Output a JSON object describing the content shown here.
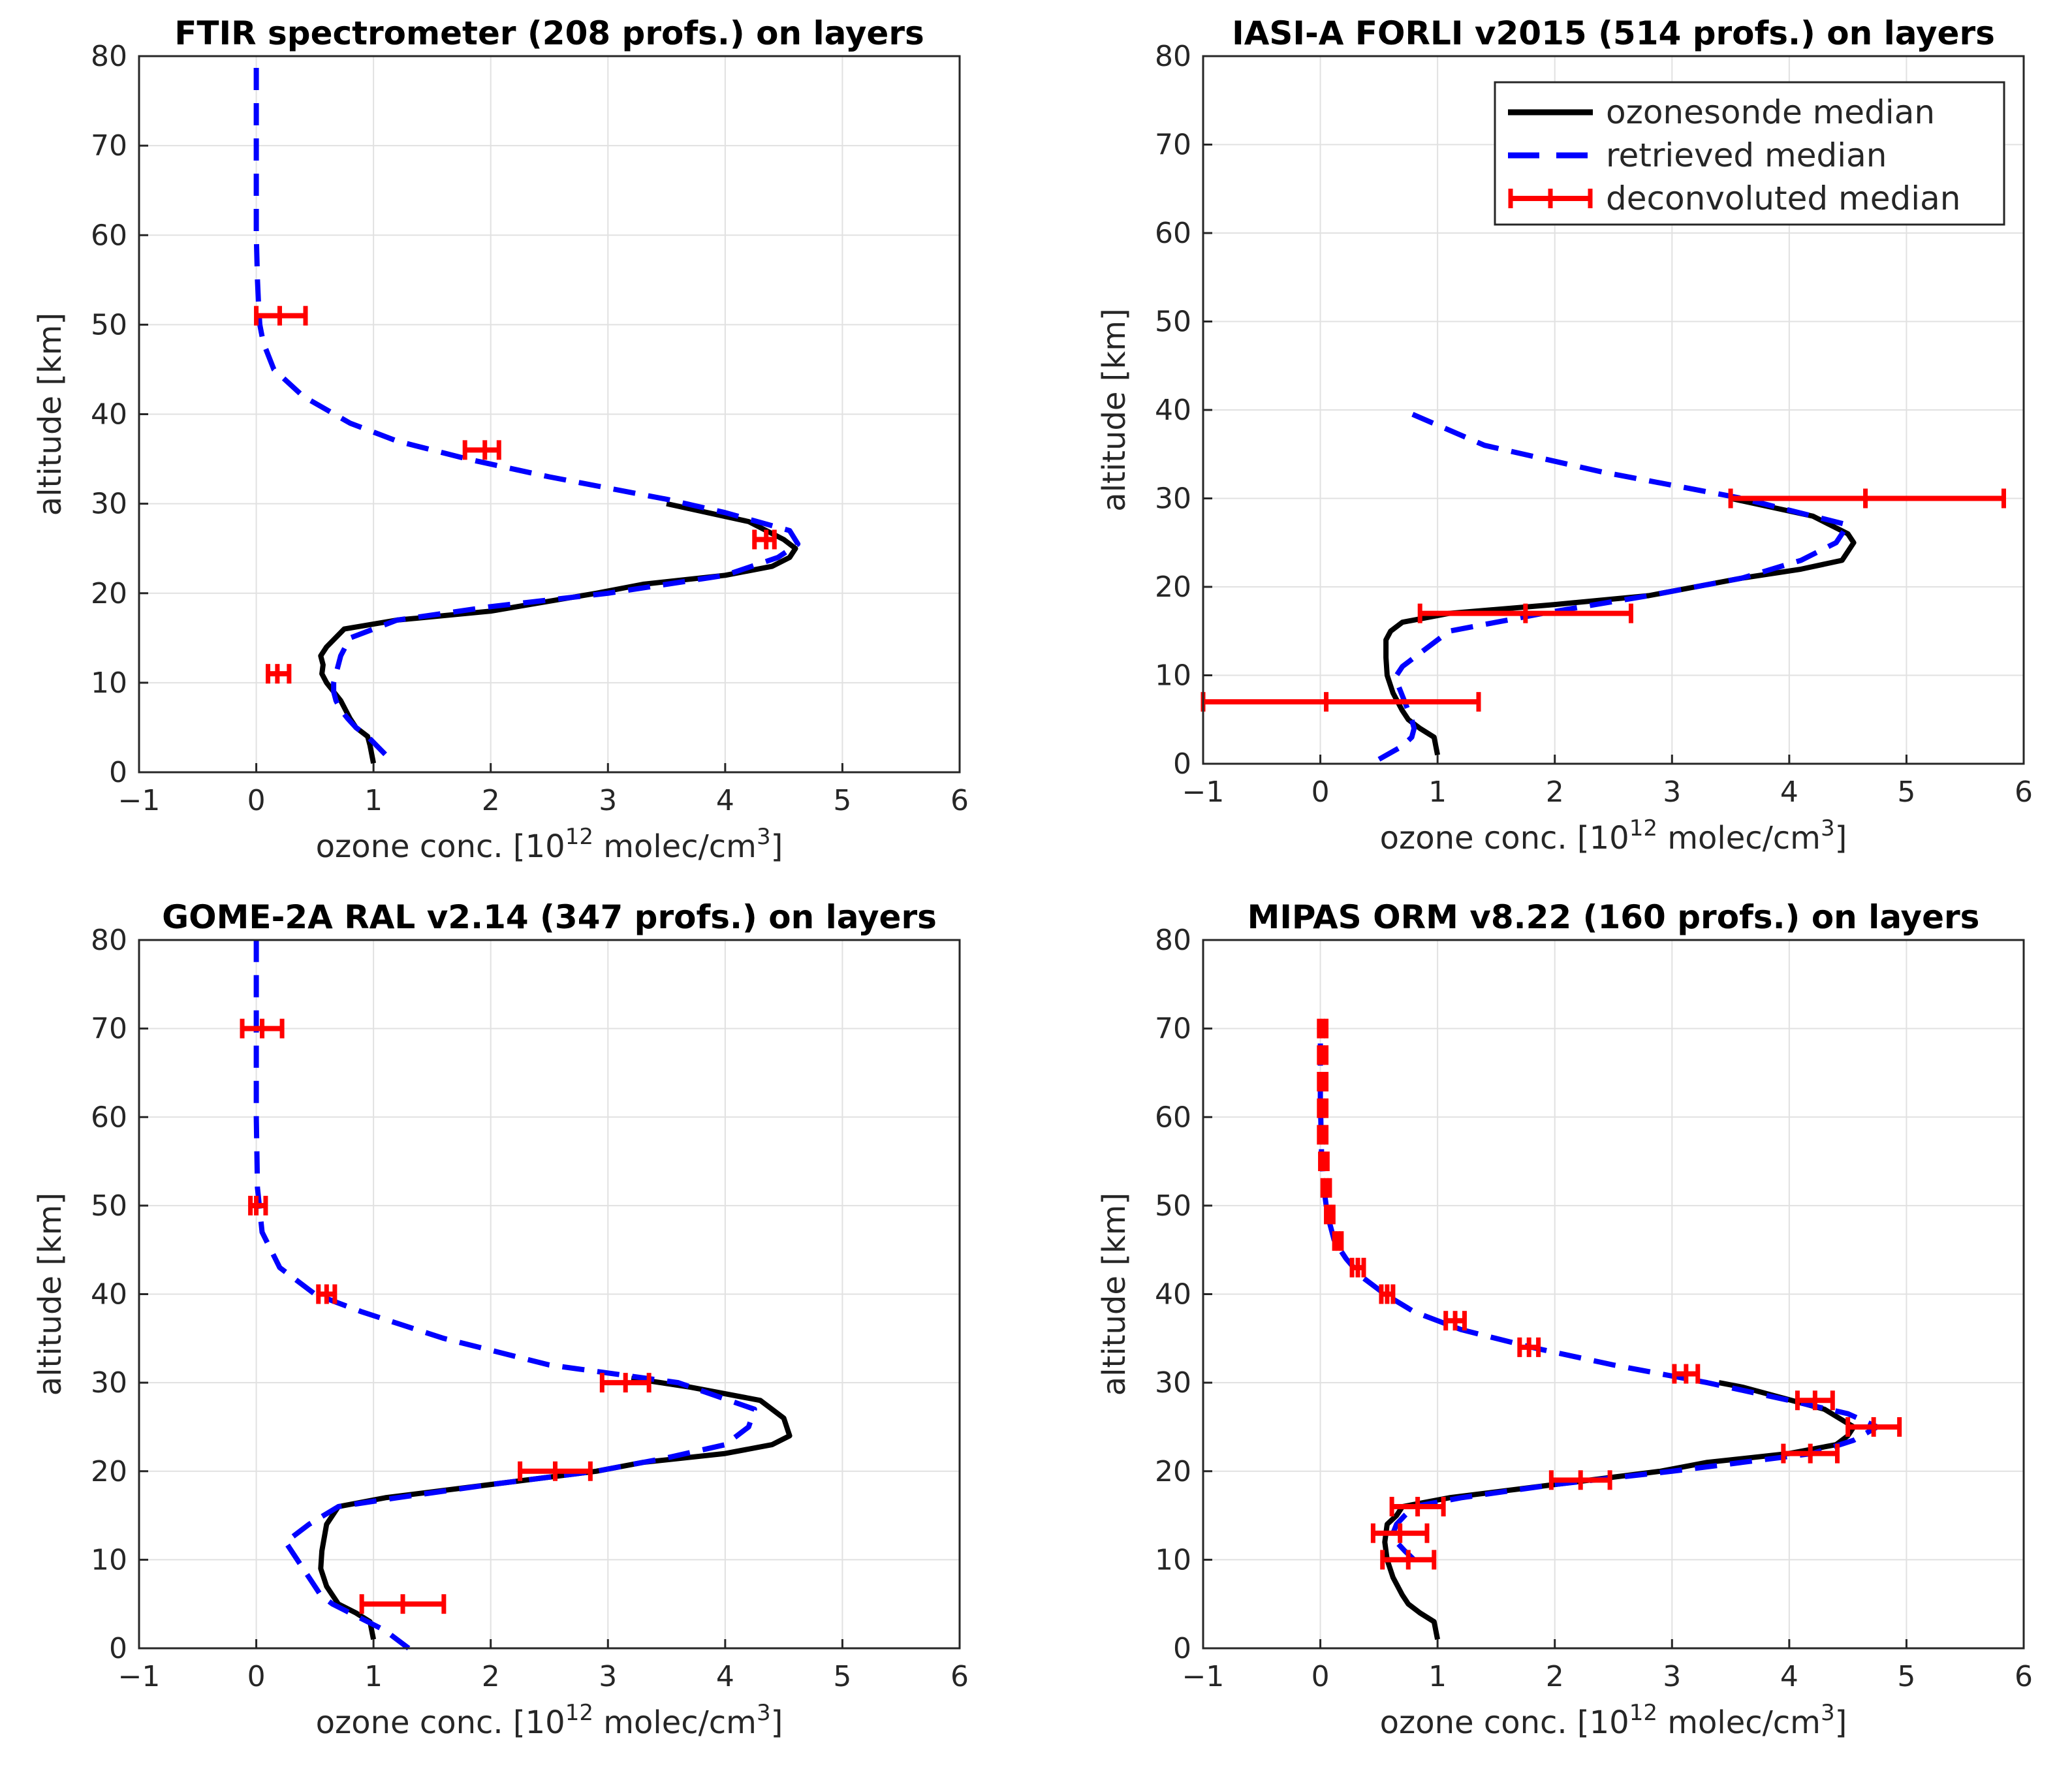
{
  "figure": {
    "xlabel_main": "ozone conc. [10",
    "xlabel_exp1": "12",
    "xlabel_mid": " molec/cm",
    "xlabel_exp2": "3",
    "xlabel_end": "]",
    "ylabel": "altitude [km]"
  },
  "legend": {
    "items": [
      {
        "label": "ozonesonde median",
        "color": "#000000",
        "style": "solid"
      },
      {
        "label": "retrieved median",
        "color": "#0000ff",
        "style": "dashed"
      },
      {
        "label": "deconvoluted median",
        "color": "#ff0000",
        "style": "errorbar"
      }
    ]
  },
  "colors": {
    "sonde": "#000000",
    "retrieved": "#0000ff",
    "deconvoluted": "#ff0000"
  },
  "chart_data": [
    {
      "type": "line",
      "title": "FTIR spectrometer (208 profs.) on layers",
      "xlim": [
        -1,
        6
      ],
      "ylim": [
        0,
        80
      ],
      "xticks": [
        -1,
        0,
        1,
        2,
        3,
        4,
        5,
        6
      ],
      "yticks": [
        0,
        10,
        20,
        30,
        40,
        50,
        60,
        70,
        80
      ],
      "grid": true,
      "legend": false,
      "series": [
        {
          "name": "ozonesonde median",
          "x": [
            1.0,
            0.97,
            0.95,
            0.85,
            0.8,
            0.72,
            0.6,
            0.56,
            0.57,
            0.55,
            0.6,
            0.75,
            1.2,
            2.0,
            2.9,
            3.3,
            4.0,
            4.4,
            4.55,
            4.6,
            4.5,
            4.2,
            3.5
          ],
          "y": [
            1,
            3,
            4,
            5,
            6,
            8,
            10,
            11,
            12,
            13,
            14,
            16,
            17,
            18,
            20,
            21,
            22,
            23,
            24,
            25,
            26,
            28,
            30
          ]
        },
        {
          "name": "retrieved median",
          "x": [
            1.1,
            0.95,
            0.85,
            0.78,
            0.72,
            0.68,
            0.66,
            0.66,
            0.68,
            0.7,
            0.72,
            0.8,
            1.2,
            2.0,
            3.0,
            4.0,
            4.45,
            4.62,
            4.55,
            4.0,
            3.5,
            2.5,
            1.8,
            1.2,
            0.8,
            0.4,
            0.15,
            0.06,
            0.03,
            0.02,
            0.01,
            0.0,
            0.0,
            0.0
          ],
          "y": [
            2,
            4,
            5,
            6,
            7,
            8,
            9,
            10,
            11,
            12,
            13,
            15,
            17,
            18.5,
            20,
            22,
            24,
            25.5,
            27,
            29,
            30.5,
            33,
            35,
            37,
            39,
            42,
            45,
            48,
            50,
            52,
            55,
            60,
            70,
            80
          ]
        }
      ],
      "errorbars": [
        {
          "y": 51,
          "x": 0.2,
          "xerr_low": 0.2,
          "xerr_high": 0.22
        },
        {
          "y": 36,
          "x": 1.95,
          "xerr_low": 0.17,
          "xerr_high": 0.12
        },
        {
          "y": 26,
          "x": 4.35,
          "xerr_low": 0.1,
          "xerr_high": 0.07
        },
        {
          "y": 11,
          "x": 0.18,
          "xerr_low": 0.08,
          "xerr_high": 0.1
        }
      ]
    },
    {
      "type": "line",
      "title": "IASI-A FORLI v2015 (514 profs.) on layers",
      "xlim": [
        -1,
        6
      ],
      "ylim": [
        0,
        80
      ],
      "xticks": [
        -1,
        0,
        1,
        2,
        3,
        4,
        5,
        6
      ],
      "yticks": [
        0,
        10,
        20,
        30,
        40,
        50,
        60,
        70,
        80
      ],
      "grid": true,
      "legend": true,
      "series": [
        {
          "name": "ozonesonde median",
          "x": [
            1.0,
            0.97,
            0.85,
            0.75,
            0.7,
            0.62,
            0.57,
            0.56,
            0.56,
            0.6,
            0.7,
            1.1,
            2.0,
            2.8,
            3.2,
            3.6,
            4.1,
            4.45,
            4.55,
            4.5,
            4.2,
            3.5
          ],
          "y": [
            1,
            3,
            4,
            5,
            6,
            8,
            10,
            12,
            14,
            15,
            16,
            17,
            18,
            19,
            20,
            21,
            22,
            23,
            25,
            26,
            28,
            30
          ]
        },
        {
          "name": "retrieved median",
          "x": [
            0.5,
            0.7,
            0.78,
            0.8,
            0.78,
            0.72,
            0.66,
            0.65,
            0.7,
            0.8,
            0.95,
            1.1,
            1.9,
            2.8,
            3.6,
            4.1,
            4.4,
            4.5,
            3.6,
            2.4,
            1.4,
            0.7
          ],
          "y": [
            0.5,
            2,
            3,
            4,
            5,
            7,
            9,
            10,
            11,
            12,
            13.5,
            15,
            17,
            19,
            21,
            23,
            25,
            27,
            30,
            33,
            36,
            40
          ]
        }
      ],
      "errorbars": [
        {
          "y": 30,
          "x": 4.65,
          "xerr_low": 1.15,
          "xerr_high": 1.18
        },
        {
          "y": 17,
          "x": 1.75,
          "xerr_low": 0.9,
          "xerr_high": 0.9
        },
        {
          "y": 7,
          "x": 0.05,
          "xerr_low": 1.05,
          "xerr_high": 1.3
        }
      ]
    },
    {
      "type": "line",
      "title": "GOME-2A RAL v2.14 (347 profs.) on layers",
      "xlim": [
        -1,
        6
      ],
      "ylim": [
        0,
        80
      ],
      "xticks": [
        -1,
        0,
        1,
        2,
        3,
        4,
        5,
        6
      ],
      "yticks": [
        0,
        10,
        20,
        30,
        40,
        50,
        60,
        70,
        80
      ],
      "grid": true,
      "legend": false,
      "series": [
        {
          "name": "ozonesonde median",
          "x": [
            1.0,
            0.97,
            0.85,
            0.7,
            0.6,
            0.55,
            0.56,
            0.6,
            0.7,
            1.1,
            2.0,
            2.9,
            3.3,
            4.0,
            4.4,
            4.55,
            4.5,
            4.3,
            3.7,
            3.2
          ],
          "y": [
            1,
            3,
            4,
            5,
            7,
            9,
            11,
            14,
            16,
            17,
            18.5,
            20,
            21,
            22,
            23,
            24,
            26,
            28,
            29.5,
            30.5
          ]
        },
        {
          "name": "retrieved median",
          "x": [
            1.3,
            1.1,
            0.95,
            0.8,
            0.65,
            0.55,
            0.45,
            0.35,
            0.25,
            0.45,
            0.7,
            1.2,
            2.0,
            2.9,
            3.5,
            4.0,
            4.2,
            4.25,
            3.6,
            2.5,
            1.6,
            0.9,
            0.5,
            0.2,
            0.05,
            0.01,
            0.0,
            0.0
          ],
          "y": [
            0,
            2,
            3,
            4,
            5,
            6,
            8,
            10,
            12,
            14,
            16,
            17,
            18.5,
            20,
            21.5,
            23,
            25,
            27,
            30,
            32,
            35,
            38,
            40,
            43,
            47,
            52,
            60,
            80
          ]
        }
      ],
      "errorbars": [
        {
          "y": 70,
          "x": 0.05,
          "xerr_low": 0.17,
          "xerr_high": 0.17
        },
        {
          "y": 50,
          "x": 0.0,
          "xerr_low": 0.05,
          "xerr_high": 0.08
        },
        {
          "y": 40,
          "x": 0.6,
          "xerr_low": 0.07,
          "xerr_high": 0.07
        },
        {
          "y": 30,
          "x": 3.15,
          "xerr_low": 0.2,
          "xerr_high": 0.2
        },
        {
          "y": 20,
          "x": 2.55,
          "xerr_low": 0.3,
          "xerr_high": 0.3
        },
        {
          "y": 5,
          "x": 1.25,
          "xerr_low": 0.35,
          "xerr_high": 0.35
        }
      ]
    },
    {
      "type": "line",
      "title": "MIPAS ORM v8.22 (160 profs.) on layers",
      "xlim": [
        -1,
        6
      ],
      "ylim": [
        0,
        80
      ],
      "xticks": [
        -1,
        0,
        1,
        2,
        3,
        4,
        5,
        6
      ],
      "yticks": [
        0,
        10,
        20,
        30,
        40,
        50,
        60,
        70,
        80
      ],
      "grid": true,
      "legend": false,
      "series": [
        {
          "name": "ozonesonde median",
          "x": [
            1.0,
            0.97,
            0.85,
            0.75,
            0.7,
            0.62,
            0.57,
            0.55,
            0.57,
            0.65,
            0.7,
            1.1,
            2.0,
            2.9,
            3.3,
            4.0,
            4.4,
            4.5,
            4.55,
            4.3,
            3.6,
            3.4
          ],
          "y": [
            1,
            3,
            4,
            5,
            6,
            8,
            10,
            12,
            14,
            15,
            16,
            17,
            18.5,
            20,
            21,
            22,
            23,
            24,
            25,
            27,
            29.5,
            30
          ]
        },
        {
          "name": "retrieved median",
          "x": [
            0.8,
            0.72,
            0.65,
            0.62,
            0.65,
            0.72,
            0.8,
            1.2,
            2.0,
            3.0,
            3.6,
            4.2,
            4.55,
            4.75,
            4.5,
            4.0,
            3.3,
            2.5,
            1.8,
            1.2,
            0.8,
            0.55,
            0.35,
            0.22,
            0.12,
            0.06,
            0.03,
            0.01,
            0.0,
            0.0
          ],
          "y": [
            10,
            11,
            12,
            13,
            14,
            15,
            16,
            17,
            18.5,
            20,
            21,
            22,
            23.5,
            25,
            26.5,
            28,
            30,
            32,
            34,
            36,
            38,
            40,
            42,
            44,
            46,
            49,
            52,
            56,
            62,
            70
          ]
        }
      ],
      "errorbars": [
        {
          "y": 70,
          "x": 0.02,
          "xerr_low": 0.03,
          "xerr_high": 0.03
        },
        {
          "y": 67,
          "x": 0.02,
          "xerr_low": 0.03,
          "xerr_high": 0.03
        },
        {
          "y": 64,
          "x": 0.02,
          "xerr_low": 0.03,
          "xerr_high": 0.03
        },
        {
          "y": 61,
          "x": 0.02,
          "xerr_low": 0.03,
          "xerr_high": 0.03
        },
        {
          "y": 58,
          "x": 0.02,
          "xerr_low": 0.03,
          "xerr_high": 0.03
        },
        {
          "y": 55,
          "x": 0.03,
          "xerr_low": 0.03,
          "xerr_high": 0.03
        },
        {
          "y": 52,
          "x": 0.05,
          "xerr_low": 0.03,
          "xerr_high": 0.03
        },
        {
          "y": 49,
          "x": 0.08,
          "xerr_low": 0.03,
          "xerr_high": 0.03
        },
        {
          "y": 46,
          "x": 0.15,
          "xerr_low": 0.03,
          "xerr_high": 0.03
        },
        {
          "y": 43,
          "x": 0.32,
          "xerr_low": 0.05,
          "xerr_high": 0.05
        },
        {
          "y": 40,
          "x": 0.57,
          "xerr_low": 0.05,
          "xerr_high": 0.05
        },
        {
          "y": 37,
          "x": 1.15,
          "xerr_low": 0.08,
          "xerr_high": 0.08
        },
        {
          "y": 34,
          "x": 1.78,
          "xerr_low": 0.08,
          "xerr_high": 0.08
        },
        {
          "y": 31,
          "x": 3.12,
          "xerr_low": 0.1,
          "xerr_high": 0.1
        },
        {
          "y": 28,
          "x": 4.22,
          "xerr_low": 0.15,
          "xerr_high": 0.15
        },
        {
          "y": 25,
          "x": 4.72,
          "xerr_low": 0.22,
          "xerr_high": 0.22
        },
        {
          "y": 22,
          "x": 4.18,
          "xerr_low": 0.23,
          "xerr_high": 0.23
        },
        {
          "y": 19,
          "x": 2.22,
          "xerr_low": 0.25,
          "xerr_high": 0.25
        },
        {
          "y": 16,
          "x": 0.83,
          "xerr_low": 0.22,
          "xerr_high": 0.22
        },
        {
          "y": 13,
          "x": 0.68,
          "xerr_low": 0.23,
          "xerr_high": 0.23
        },
        {
          "y": 10,
          "x": 0.75,
          "xerr_low": 0.22,
          "xerr_high": 0.22
        }
      ]
    }
  ]
}
